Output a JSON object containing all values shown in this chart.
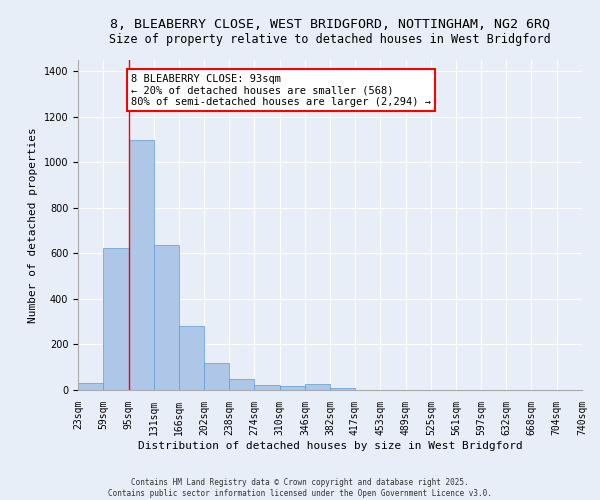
{
  "title1": "8, BLEABERRY CLOSE, WEST BRIDGFORD, NOTTINGHAM, NG2 6RQ",
  "title2": "Size of property relative to detached houses in West Bridgford",
  "xlabel": "Distribution of detached houses by size in West Bridgford",
  "ylabel": "Number of detached properties",
  "bins": [
    23,
    59,
    95,
    131,
    166,
    202,
    238,
    274,
    310,
    346,
    382,
    417,
    453,
    489,
    525,
    561,
    597,
    632,
    668,
    704,
    740
  ],
  "counts": [
    30,
    622,
    1100,
    638,
    280,
    120,
    50,
    22,
    18,
    25,
    8,
    0,
    0,
    0,
    0,
    0,
    0,
    0,
    0,
    0
  ],
  "bar_color": "#aec6e8",
  "bar_edge_color": "#5b9bd5",
  "vline_x": 95,
  "vline_color": "red",
  "annotation_text": "8 BLEABERRY CLOSE: 93sqm\n← 20% of detached houses are smaller (568)\n80% of semi-detached houses are larger (2,294) →",
  "annotation_box_color": "white",
  "annotation_box_edge_color": "red",
  "ylim": [
    0,
    1450
  ],
  "yticks": [
    0,
    200,
    400,
    600,
    800,
    1000,
    1200,
    1400
  ],
  "bg_color": "#e8eef7",
  "plot_bg_color": "#e8eef7",
  "footer": "Contains HM Land Registry data © Crown copyright and database right 2025.\nContains public sector information licensed under the Open Government Licence v3.0.",
  "title1_fontsize": 9.5,
  "title2_fontsize": 8.5,
  "annotation_fontsize": 7.5,
  "tick_fontsize": 7,
  "ylabel_fontsize": 8,
  "xlabel_fontsize": 8,
  "footer_fontsize": 5.5
}
